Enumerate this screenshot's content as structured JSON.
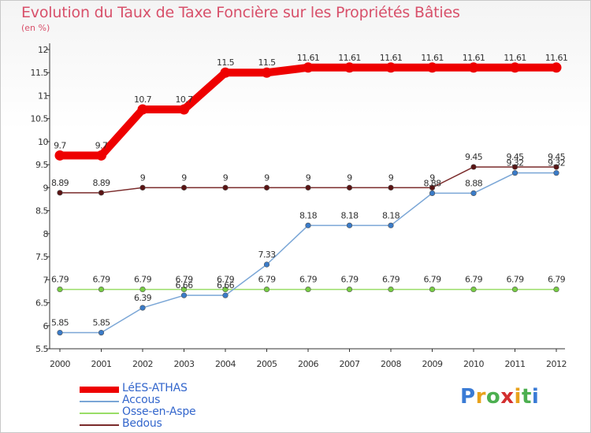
{
  "title": "Evolution du Taux de Taxe Foncière sur les Propriétés Bâties",
  "subtitle": "(en %)",
  "logo_text": "Proxiti",
  "logo_colors": [
    "#3a7bd5",
    "#e8a21c",
    "#4caf50",
    "#d32f2f",
    "#e8a21c",
    "#4caf50",
    "#3a7bd5"
  ],
  "chart_data": {
    "type": "line",
    "title": "Evolution du Taux de Taxe Foncière sur les Propriétés Bâties",
    "ylabel": "(en %)",
    "xlabel": "",
    "x": [
      2000,
      2001,
      2002,
      2003,
      2004,
      2005,
      2006,
      2007,
      2008,
      2009,
      2010,
      2011,
      2012
    ],
    "x_tick_labels": [
      "2000",
      "2001",
      "2002",
      "2003",
      "2004",
      "2005",
      "2006",
      "2007",
      "2008",
      "2009",
      "2010",
      "2011",
      "2012"
    ],
    "ylim": [
      5.5,
      12
    ],
    "y_ticks": [
      5.5,
      6,
      6.5,
      7,
      7.5,
      8,
      8.5,
      9,
      9.5,
      10,
      10.5,
      11,
      11.5,
      12
    ],
    "y_tick_labels": [
      "5.5",
      "6",
      "6.5",
      "7",
      "7.5",
      "8",
      "8.5",
      "9",
      "9.5",
      "10",
      "10.5",
      "11",
      "11.5",
      "12"
    ],
    "grid": false,
    "legend_position": "bottom-left",
    "series": [
      {
        "name": "LéES-ATHAS",
        "color": "#ee0000",
        "marker_color": "#ee0000",
        "values": [
          9.7,
          9.7,
          10.7,
          10.7,
          11.5,
          11.5,
          11.61,
          11.61,
          11.61,
          11.61,
          11.61,
          11.61,
          11.61
        ],
        "labels": [
          "9.7",
          "9.7",
          "10.7",
          "10.7",
          "11.5",
          "11.5",
          "11.61",
          "11.61",
          "11.61",
          "11.61",
          "11.61",
          "11.61",
          "11.61"
        ]
      },
      {
        "name": "Accous",
        "color": "#7aa6d6",
        "marker_color": "#3a7bc8",
        "values": [
          5.85,
          5.85,
          6.39,
          6.66,
          6.66,
          7.33,
          8.18,
          8.18,
          8.18,
          8.88,
          8.88,
          9.32,
          9.32
        ],
        "labels": [
          "5.85",
          "5.85",
          "6.39",
          "6.66",
          "6.66",
          "7.33",
          "8.18",
          "8.18",
          "8.18",
          "8.88",
          "8.88",
          "9.32",
          "9.32"
        ]
      },
      {
        "name": "Osse-en-Aspe",
        "color": "#99dd66",
        "marker_color": "#77cc44",
        "values": [
          6.79,
          6.79,
          6.79,
          6.79,
          6.79,
          6.79,
          6.79,
          6.79,
          6.79,
          6.79,
          6.79,
          6.79,
          6.79
        ],
        "labels": [
          "6.79",
          "6.79",
          "6.79",
          "6.79",
          "6.79",
          "6.79",
          "6.79",
          "6.79",
          "6.79",
          "6.79",
          "6.79",
          "6.79",
          "6.79"
        ]
      },
      {
        "name": "Bedous",
        "color": "#7a2a2a",
        "marker_color": "#5a1414",
        "values": [
          8.89,
          8.89,
          9,
          9,
          9,
          9,
          9,
          9,
          9,
          9,
          9.45,
          9.45,
          9.45
        ],
        "labels": [
          "8.89",
          "8.89",
          "9",
          "9",
          "9",
          "9",
          "9",
          "9",
          "9",
          "9",
          "9.45",
          "9.45",
          "9.45"
        ]
      }
    ]
  }
}
